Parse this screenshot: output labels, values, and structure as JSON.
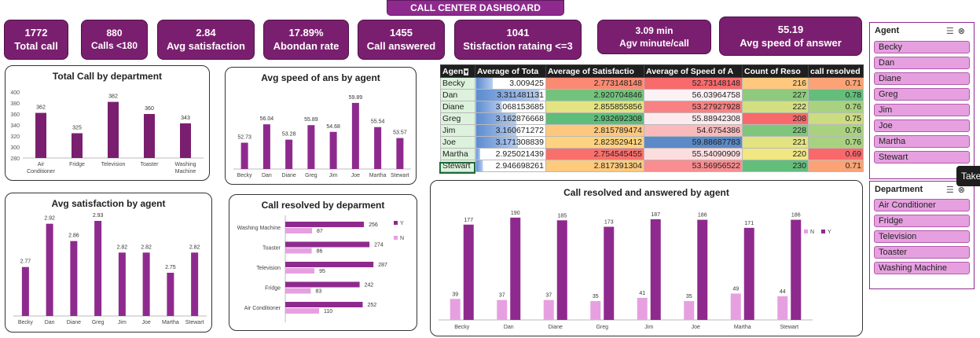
{
  "dashboard": {
    "title": "CALL CENTER DASHBOARD"
  },
  "kpis": [
    {
      "value": "1772",
      "label": "Total call"
    },
    {
      "value": "880",
      "label": "Calls <180"
    },
    {
      "value": "2.84",
      "label": "Avg satisfaction"
    },
    {
      "value": "17.89%",
      "label": "Abondan rate"
    },
    {
      "value": "1455",
      "label": "Call answered"
    },
    {
      "value": "1041",
      "label": "Stisfaction rataing <=3"
    },
    {
      "value": "3.09 min",
      "label": "Agv minute/call"
    },
    {
      "value": "55.19",
      "label": "Avg speed of answer"
    }
  ],
  "charts": {
    "dept_calls": {
      "title": "Total Call by department",
      "type": "bar",
      "categories": [
        "Air Conditioner",
        "Fridge",
        "Television",
        "Toaster",
        "Washing Machine"
      ],
      "values": [
        362,
        325,
        382,
        360,
        343
      ],
      "ylim": [
        280,
        400
      ],
      "yticks": [
        280,
        300,
        320,
        340,
        360,
        380,
        400
      ],
      "color": "#7a1f6f"
    },
    "speed_agent": {
      "title": "Avg  speed of ans by agent",
      "type": "bar",
      "categories": [
        "Becky",
        "Dan",
        "Diane",
        "Greg",
        "Jim",
        "Joe",
        "Martha",
        "Stewart"
      ],
      "values": [
        52.73,
        56.04,
        53.28,
        55.89,
        54.68,
        59.89,
        55.54,
        53.57
      ],
      "labels": [
        "52.73",
        "56.04",
        "53.28",
        "55.89",
        "54.68",
        "59.89",
        "55.54",
        "53.57"
      ],
      "ylim": [
        48,
        62
      ],
      "color": "#8e2a8e"
    },
    "satisfaction_agent": {
      "title": "Avg satisfaction by agent",
      "type": "bar",
      "categories": [
        "Becky",
        "Dan",
        "Diane",
        "Greg",
        "Jim",
        "Joe",
        "Martha",
        "Stewart"
      ],
      "values": [
        2.77,
        2.92,
        2.86,
        2.93,
        2.82,
        2.82,
        2.75,
        2.82
      ],
      "labels": [
        "2.77",
        "2.92",
        "2.86",
        "2.93",
        "2.82",
        "2.82",
        "2.75",
        "2.82"
      ],
      "ylim": [
        2.6,
        2.96
      ],
      "color": "#8e2a8e"
    },
    "resolved_dept": {
      "title": "Call resolved by deparment",
      "type": "bar",
      "categories": [
        "Washing Machine",
        "Toaster",
        "Television",
        "Fridge",
        "Air Conditioner"
      ],
      "series": [
        {
          "name": "Y",
          "values": [
            256,
            274,
            287,
            242,
            252
          ],
          "color": "#8e2a8e"
        },
        {
          "name": "N",
          "values": [
            87,
            86,
            95,
            83,
            110
          ],
          "color": "#e6a0e0"
        }
      ],
      "xlim": [
        0,
        330
      ],
      "legend": "right"
    },
    "resolved_agent": {
      "title": "Call resolved and answered by agent",
      "type": "bar",
      "categories": [
        "Becky",
        "Dan",
        "Diane",
        "Greg",
        "Jim",
        "Joe",
        "Martha",
        "Stewart"
      ],
      "series": [
        {
          "name": "N",
          "values": [
            39,
            37,
            37,
            35,
            41,
            35,
            49,
            44
          ],
          "color": "#e6a0e0"
        },
        {
          "name": "Y",
          "values": [
            177,
            190,
            185,
            173,
            187,
            186,
            171,
            186
          ],
          "color": "#8e2a8e"
        }
      ],
      "ylim": [
        0,
        200
      ],
      "legend": "top-right"
    }
  },
  "table": {
    "headers": [
      "Agen",
      "Average of Tota",
      "Average of Satisfactio",
      "Average of Speed of A",
      "Count of Reso",
      "call resolved"
    ],
    "rows": [
      {
        "name": "Becky",
        "c1": "3.009425",
        "c2": "2.773148148",
        "c3": "52.73148148",
        "c4": "216",
        "c5": "0.71"
      },
      {
        "name": "Dan",
        "c1": "3.311481131",
        "c2": "2.920704846",
        "c3": "56.03964758",
        "c4": "227",
        "c5": "0.78"
      },
      {
        "name": "Diane",
        "c1": "3.068153685",
        "c2": "2.855855856",
        "c3": "53.27927928",
        "c4": "222",
        "c5": "0.76"
      },
      {
        "name": "Greg",
        "c1": "3.162876668",
        "c2": "2.932692308",
        "c3": "55.88942308",
        "c4": "208",
        "c5": "0.75"
      },
      {
        "name": "Jim",
        "c1": "3.160671272",
        "c2": "2.815789474",
        "c3": "54.6754386",
        "c4": "228",
        "c5": "0.76"
      },
      {
        "name": "Joe",
        "c1": "3.171308839",
        "c2": "2.823529412",
        "c3": "59.88687783",
        "c4": "221",
        "c5": "0.76"
      },
      {
        "name": "Martha",
        "c1": "2.925021439",
        "c2": "2.754545455",
        "c3": "55.54090909",
        "c4": "220",
        "c5": "0.69"
      },
      {
        "name": "Stewart",
        "c1": "2.946698261",
        "c2": "2.817391304",
        "c3": "53.56956522",
        "c4": "230",
        "c5": "0.71"
      }
    ]
  },
  "slicers": {
    "agent": {
      "title": "Agent",
      "items": [
        "Becky",
        "Dan",
        "Diane",
        "Greg",
        "Jim",
        "Joe",
        "Martha",
        "Stewart"
      ]
    },
    "department": {
      "title": "Department",
      "items": [
        "Air Conditioner",
        "Fridge",
        "Television",
        "Toaster",
        "Washing Machine"
      ]
    }
  },
  "tooltip": {
    "text": "Take"
  },
  "colors": {
    "accent": "#7a1f6f",
    "accent_light": "#e6a0e0",
    "table_header": "#1f1f1f"
  }
}
